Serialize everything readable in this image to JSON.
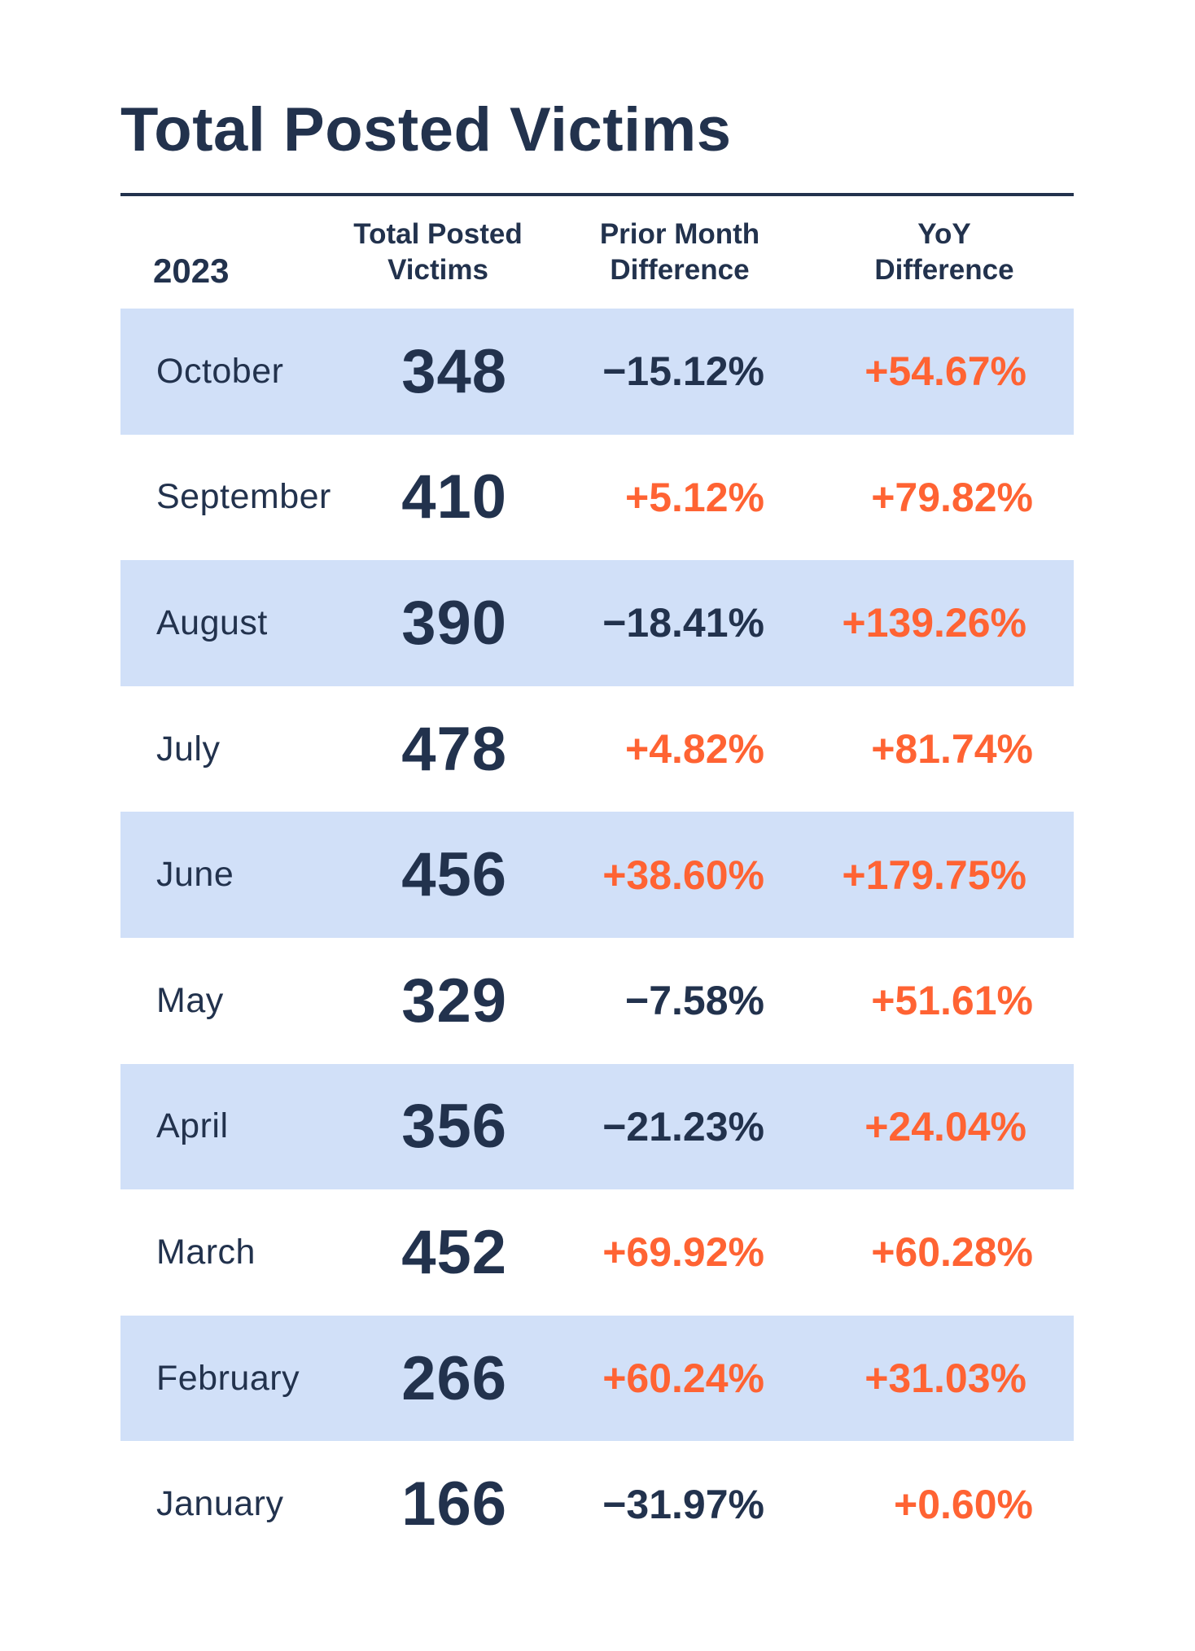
{
  "title": "Total Posted Victims",
  "colors": {
    "text": "#22324D",
    "positive": "#FF6333",
    "band": "#D1E0F8",
    "rule": "#22324D"
  },
  "header": {
    "year": "2023",
    "total_line1": "Total Posted",
    "total_line2": "Victims",
    "prior_line1": "Prior Month",
    "prior_line2": "Difference",
    "yoy_line1": "YoY",
    "yoy_line2": "Difference"
  },
  "rows": [
    {
      "month": "October",
      "total": "348",
      "prior": "−15.12%",
      "yoy": "+54.67%"
    },
    {
      "month": "September",
      "total": "410",
      "prior": "+5.12%",
      "yoy": "+79.82%"
    },
    {
      "month": "August",
      "total": "390",
      "prior": "−18.41%",
      "yoy": "+139.26%"
    },
    {
      "month": "July",
      "total": "478",
      "prior": "+4.82%",
      "yoy": "+81.74%"
    },
    {
      "month": "June",
      "total": "456",
      "prior": "+38.60%",
      "yoy": "+179.75%"
    },
    {
      "month": "May",
      "total": "329",
      "prior": "−7.58%",
      "yoy": "+51.61%"
    },
    {
      "month": "April",
      "total": "356",
      "prior": "−21.23%",
      "yoy": "+24.04%"
    },
    {
      "month": "March",
      "total": "452",
      "prior": "+69.92%",
      "yoy": "+60.28%"
    },
    {
      "month": "February",
      "total": "266",
      "prior": "+60.24%",
      "yoy": "+31.03%"
    },
    {
      "month": "January",
      "total": "166",
      "prior": "−31.97%",
      "yoy": "+0.60%"
    }
  ],
  "chart_data": {
    "type": "table",
    "title": "Total Posted Victims",
    "year": "2023",
    "columns": [
      "2023",
      "Total Posted Victims",
      "Prior Month Difference",
      "YoY Difference"
    ],
    "categories": [
      "October",
      "September",
      "August",
      "July",
      "June",
      "May",
      "April",
      "March",
      "February",
      "January"
    ],
    "series": [
      {
        "name": "Total Posted Victims",
        "values": [
          348,
          410,
          390,
          478,
          456,
          329,
          356,
          452,
          266,
          166
        ]
      },
      {
        "name": "Prior Month Difference (%)",
        "values": [
          -15.12,
          5.12,
          -18.41,
          4.82,
          38.6,
          -7.58,
          -21.23,
          69.92,
          60.24,
          -31.97
        ]
      },
      {
        "name": "YoY Difference (%)",
        "values": [
          54.67,
          79.82,
          139.26,
          81.74,
          179.75,
          51.61,
          24.04,
          60.28,
          31.03,
          0.6
        ]
      }
    ],
    "layout": {
      "alternating_row_shading": true,
      "positive_color": "#FF6333",
      "negative_color": "#22324D"
    }
  }
}
